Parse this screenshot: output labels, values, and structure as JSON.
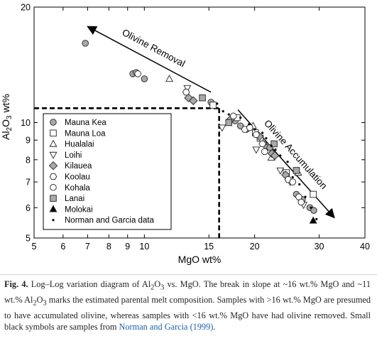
{
  "chart_data": {
    "type": "scatter",
    "xscale": "log",
    "yscale": "log",
    "xlim": [
      5,
      40
    ],
    "ylim": [
      5,
      20
    ],
    "xlabel": "MgO wt%",
    "ylabel": "Al2O3 wt%",
    "xticks": [
      5,
      6,
      7,
      8,
      9,
      10,
      15,
      20,
      30,
      40
    ],
    "xtick_labels": [
      "5",
      "6",
      "7",
      "8",
      "9",
      "10",
      "15",
      "20",
      "30",
      "40"
    ],
    "yticks": [
      5,
      6,
      7,
      8,
      9,
      10,
      20
    ],
    "ytick_labels": [
      "5",
      "6",
      "7",
      "8",
      "9",
      "10",
      "20"
    ],
    "grid": false,
    "legend_position": "left-center",
    "annotations": [
      {
        "text": "Olivine Removal",
        "from": [
          15.2,
          12.0
        ],
        "to": [
          7.0,
          17.8
        ]
      },
      {
        "text": "Olivine Accumulation",
        "from": [
          18.0,
          10.8
        ],
        "to": [
          33.0,
          5.65
        ]
      }
    ],
    "break_point": {
      "x": 16,
      "y": 10.9
    },
    "series": [
      {
        "name": "Mauna Kea",
        "marker": "circle",
        "fill": "#a9a9a9",
        "points": [
          [
            6.9,
            16.1
          ],
          [
            9.3,
            13.4
          ],
          [
            9.5,
            13.5
          ],
          [
            10.0,
            13.0
          ],
          [
            15.2,
            11.3
          ],
          [
            17.7,
            10.1
          ],
          [
            18.3,
            9.8
          ],
          [
            19.0,
            9.6
          ],
          [
            21.5,
            8.7
          ],
          [
            22.0,
            8.6
          ],
          [
            26.0,
            6.5
          ],
          [
            27.0,
            6.3
          ],
          [
            28.3,
            6.0
          ],
          [
            29.0,
            5.9
          ]
        ]
      },
      {
        "name": "Mauna Loa",
        "marker": "square",
        "fill": "#ffffff",
        "points": [
          [
            15.4,
            11.1
          ],
          [
            17.9,
            10.3
          ],
          [
            20.1,
            9.4
          ],
          [
            20.7,
            9.1
          ],
          [
            24.4,
            7.4
          ],
          [
            28.9,
            6.5
          ]
        ]
      },
      {
        "name": "Hualalai",
        "marker": "triangle-up",
        "fill": "#ffffff",
        "points": [
          [
            11.7,
            13.0
          ],
          [
            19.8,
            9.8
          ],
          [
            21.2,
            8.9
          ],
          [
            22.2,
            8.1
          ],
          [
            26.3,
            7.4
          ]
        ]
      },
      {
        "name": "Loihi",
        "marker": "triangle-down",
        "fill": "#ffffff",
        "points": [
          [
            13.1,
            12.3
          ],
          [
            16.3,
            9.7
          ],
          [
            20.2,
            8.5
          ],
          [
            23.5,
            7.5
          ],
          [
            25.0,
            7.0
          ],
          [
            27.2,
            6.1
          ]
        ]
      },
      {
        "name": "Kilauea",
        "marker": "diamond",
        "fill": "#a9a9a9",
        "points": [
          [
            13.2,
            11.6
          ],
          [
            13.6,
            11.4
          ],
          [
            17.2,
            10.2
          ],
          [
            20.6,
            9.2
          ],
          [
            22.3,
            8.3
          ],
          [
            22.7,
            8.2
          ],
          [
            24.3,
            7.3
          ]
        ]
      },
      {
        "name": "Koolau",
        "marker": "hexagon",
        "fill": "#ffffff",
        "points": [
          [
            13.0,
            12.0
          ],
          [
            18.8,
            9.6
          ],
          [
            20.2,
            9.3
          ],
          [
            21.0,
            8.8
          ],
          [
            24.7,
            7.1
          ],
          [
            26.4,
            6.4
          ]
        ]
      },
      {
        "name": "Kohala",
        "marker": "circle",
        "fill": "#ffffff",
        "points": [
          [
            9.6,
            13.4
          ],
          [
            17.5,
            10.4
          ],
          [
            19.4,
            9.7
          ],
          [
            21.3,
            8.4
          ],
          [
            25.4,
            7.0
          ],
          [
            26.8,
            6.2
          ]
        ]
      },
      {
        "name": "Lanai",
        "marker": "square",
        "fill": "#a9a9a9",
        "points": [
          [
            14.4,
            11.6
          ],
          [
            17.0,
            10.0
          ],
          [
            22.6,
            8.8
          ],
          [
            26.0,
            7.5
          ]
        ]
      },
      {
        "name": "Molokai",
        "marker": "triangle-up",
        "fill": "#000000",
        "points": [
          [
            28.9,
            5.55
          ]
        ]
      },
      {
        "name": "Norman and Garcia data",
        "marker": "dot",
        "fill": "#000000",
        "points": [
          [
            15.8,
            11.2
          ],
          [
            16.4,
            10.7
          ],
          [
            17.0,
            10.5
          ],
          [
            18.3,
            10.3
          ],
          [
            19.3,
            9.9
          ],
          [
            20.0,
            9.6
          ],
          [
            21.0,
            9.4
          ],
          [
            21.5,
            9.1
          ],
          [
            22.2,
            8.7
          ],
          [
            22.8,
            8.5
          ],
          [
            23.5,
            8.2
          ],
          [
            24.6,
            7.9
          ],
          [
            25.4,
            7.2
          ],
          [
            26.5,
            6.9
          ],
          [
            27.5,
            6.4
          ],
          [
            28.5,
            6.0
          ],
          [
            29.5,
            5.6
          ]
        ]
      }
    ]
  },
  "caption": {
    "label": "Fig. 4.",
    "text_1": " Log–Log variation diagram of Al",
    "sub_1": "2",
    "text_2": "O",
    "sub_2": "3",
    "text_3": " vs. MgO. The break in slope at ~16 wt.% MgO and ~11 wt.% Al",
    "sub_3": "2",
    "text_4": "O",
    "sub_4": "3",
    "text_5": " marks the estimated parental melt composition. Samples with >16 wt.% MgO are presumed to have accumulated olivine, whereas samples with <16 wt.% MgO have had olivine removed. Small black symbols are samples from ",
    "citation": "Norman and Garcia (1999)",
    "text_6": "."
  }
}
